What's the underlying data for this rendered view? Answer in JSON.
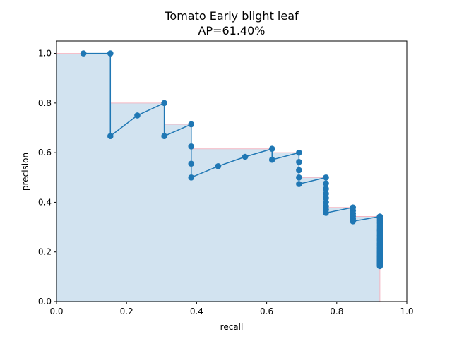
{
  "chart_data": {
    "type": "line",
    "title": "Tomato Early blight leaf",
    "subtitle": "AP=61.40%",
    "xlabel": "recall",
    "ylabel": "precision",
    "xlim": [
      0,
      1
    ],
    "ylim": [
      0,
      1.05
    ],
    "xticks": [
      "0.0",
      "0.2",
      "0.4",
      "0.6",
      "0.8",
      "1.0"
    ],
    "yticks": [
      "0.0",
      "0.2",
      "0.4",
      "0.6",
      "0.8",
      "1.0"
    ],
    "grid": false,
    "colors": {
      "line": "#1f77b4",
      "fill": "#d2e3f0",
      "envelope": "#f4b6c2"
    },
    "series": [
      {
        "type": "line-markers",
        "points": [
          [
            0.0769,
            1.0
          ],
          [
            0.1538,
            1.0
          ],
          [
            0.1538,
            0.6667
          ],
          [
            0.2308,
            0.75
          ],
          [
            0.3077,
            0.8
          ],
          [
            0.3077,
            0.6667
          ],
          [
            0.3846,
            0.7143
          ],
          [
            0.3846,
            0.625
          ],
          [
            0.3846,
            0.5556
          ],
          [
            0.3846,
            0.5
          ],
          [
            0.4615,
            0.5455
          ],
          [
            0.5385,
            0.5833
          ],
          [
            0.6154,
            0.6154
          ],
          [
            0.6154,
            0.5714
          ],
          [
            0.6923,
            0.6
          ],
          [
            0.6923,
            0.5625
          ],
          [
            0.6923,
            0.5294
          ],
          [
            0.6923,
            0.5
          ],
          [
            0.6923,
            0.4737
          ],
          [
            0.7692,
            0.5
          ],
          [
            0.7692,
            0.4762
          ],
          [
            0.7692,
            0.4545
          ],
          [
            0.7692,
            0.4348
          ],
          [
            0.7692,
            0.4167
          ],
          [
            0.7692,
            0.4
          ],
          [
            0.7692,
            0.3846
          ],
          [
            0.7692,
            0.3704
          ],
          [
            0.7692,
            0.3571
          ],
          [
            0.8462,
            0.3793
          ],
          [
            0.8462,
            0.3667
          ],
          [
            0.8462,
            0.3548
          ],
          [
            0.8462,
            0.3438
          ],
          [
            0.8462,
            0.3333
          ],
          [
            0.8462,
            0.3235
          ],
          [
            0.9231,
            0.3429
          ],
          [
            0.9231,
            0.3333
          ],
          [
            0.9231,
            0.3243
          ],
          [
            0.9231,
            0.3158
          ],
          [
            0.9231,
            0.3077
          ],
          [
            0.9231,
            0.3
          ],
          [
            0.9231,
            0.2927
          ],
          [
            0.9231,
            0.2857
          ],
          [
            0.9231,
            0.2791
          ],
          [
            0.9231,
            0.2727
          ],
          [
            0.9231,
            0.2667
          ],
          [
            0.9231,
            0.2609
          ],
          [
            0.9231,
            0.2553
          ],
          [
            0.9231,
            0.25
          ],
          [
            0.9231,
            0.2449
          ],
          [
            0.9231,
            0.24
          ],
          [
            0.9231,
            0.2353
          ],
          [
            0.9231,
            0.2308
          ],
          [
            0.9231,
            0.2264
          ],
          [
            0.9231,
            0.2222
          ],
          [
            0.9231,
            0.2182
          ],
          [
            0.9231,
            0.2143
          ],
          [
            0.9231,
            0.2105
          ],
          [
            0.9231,
            0.2069
          ],
          [
            0.9231,
            0.2034
          ],
          [
            0.9231,
            0.2
          ],
          [
            0.9231,
            0.1967
          ],
          [
            0.9231,
            0.1935
          ],
          [
            0.9231,
            0.1905
          ],
          [
            0.9231,
            0.1875
          ],
          [
            0.9231,
            0.1846
          ],
          [
            0.9231,
            0.1818
          ],
          [
            0.9231,
            0.1791
          ],
          [
            0.9231,
            0.1765
          ],
          [
            0.9231,
            0.1739
          ],
          [
            0.9231,
            0.1714
          ],
          [
            0.9231,
            0.169
          ],
          [
            0.9231,
            0.1667
          ],
          [
            0.9231,
            0.1644
          ],
          [
            0.9231,
            0.1622
          ],
          [
            0.9231,
            0.16
          ],
          [
            0.9231,
            0.1579
          ],
          [
            0.9231,
            0.1558
          ],
          [
            0.9231,
            0.1538
          ],
          [
            0.9231,
            0.1519
          ],
          [
            0.9231,
            0.15
          ],
          [
            0.9231,
            0.1481
          ],
          [
            0.9231,
            0.1463
          ],
          [
            0.9231,
            0.1446
          ],
          [
            0.9231,
            0.1429
          ]
        ]
      },
      {
        "type": "interpolated-envelope",
        "points": [
          [
            0.0,
            1.0
          ],
          [
            0.1538,
            1.0
          ],
          [
            0.1538,
            0.8
          ],
          [
            0.3077,
            0.8
          ],
          [
            0.3077,
            0.7143
          ],
          [
            0.3846,
            0.7143
          ],
          [
            0.3846,
            0.6154
          ],
          [
            0.6154,
            0.6154
          ],
          [
            0.6154,
            0.6
          ],
          [
            0.6923,
            0.6
          ],
          [
            0.6923,
            0.5
          ],
          [
            0.7692,
            0.5
          ],
          [
            0.7692,
            0.3793
          ],
          [
            0.8462,
            0.3793
          ],
          [
            0.8462,
            0.3429
          ],
          [
            0.9231,
            0.3429
          ],
          [
            0.9231,
            0.0
          ]
        ]
      }
    ]
  }
}
